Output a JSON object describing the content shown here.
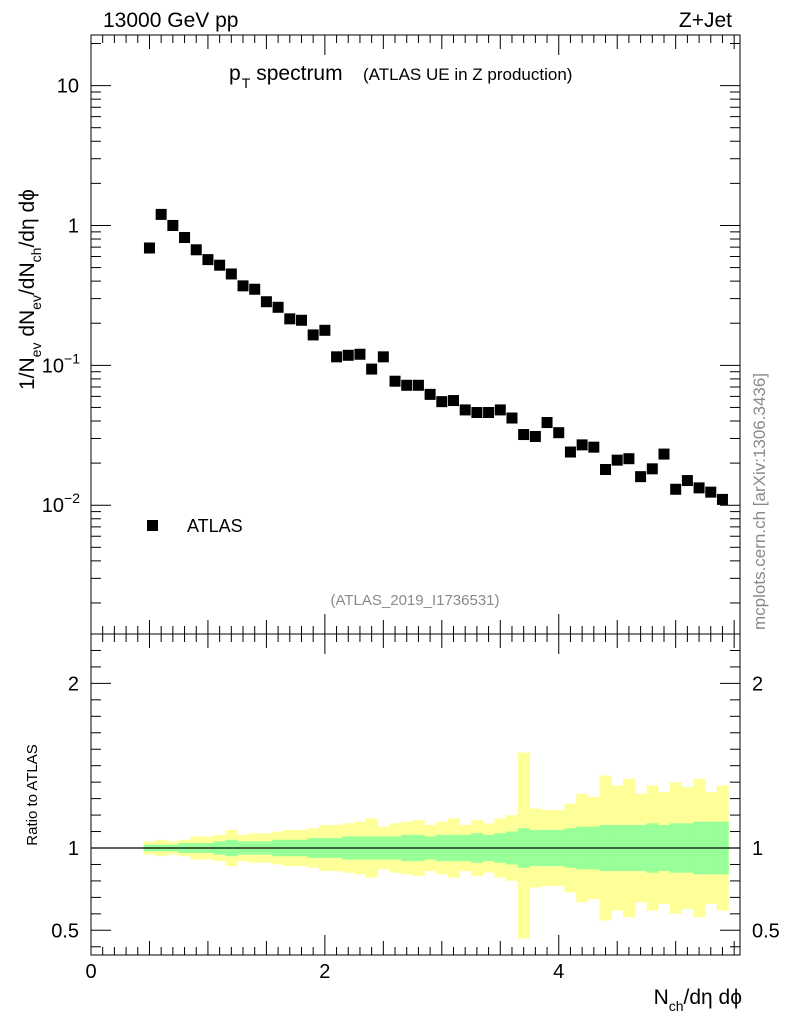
{
  "header": {
    "left_label": "13000 GeV pp",
    "right_label": "Z+Jet",
    "side_label": "mcplots.cern.ch [arXiv:1306.3436]",
    "analysis_id": "(ATLAS_2019_I1736531)"
  },
  "title": {
    "main": "p",
    "main_sub": "T",
    "main_rest": "spectrum",
    "detail": "(ATLAS UE in Z production)"
  },
  "chart_data": [
    {
      "type": "scatter",
      "log_y": true,
      "xlim": [
        0,
        5.55
      ],
      "ylim": [
        0.0012,
        23
      ],
      "ylabel": {
        "a": "1/N",
        "a_sub": "ev",
        "b": " dN",
        "b_sub": "ev",
        "c": "/dN",
        "c_sub": "ch",
        "d": "/dη dϕ"
      },
      "y_ticks": [
        {
          "value": 10,
          "label": "10"
        },
        {
          "value": 1,
          "label": "1"
        },
        {
          "value": 0.1,
          "label": "10",
          "exp": "−1"
        },
        {
          "value": 0.01,
          "label": "10",
          "exp": "−2"
        }
      ],
      "legend": {
        "position": "bottom-left",
        "entry": "ATLAS"
      },
      "series": [
        {
          "name": "ATLAS",
          "color": "#000000",
          "x": [
            0.5,
            0.6,
            0.7,
            0.8,
            0.9,
            1.0,
            1.1,
            1.2,
            1.3,
            1.4,
            1.5,
            1.6,
            1.7,
            1.8,
            1.9,
            2.0,
            2.1,
            2.2,
            2.3,
            2.4,
            2.5,
            2.6,
            2.7,
            2.8,
            2.9,
            3.0,
            3.1,
            3.2,
            3.3,
            3.4,
            3.5,
            3.6,
            3.7,
            3.8,
            3.9,
            4.0,
            4.1,
            4.2,
            4.3,
            4.4,
            4.5,
            4.6,
            4.7,
            4.8,
            4.9,
            5.0,
            5.1,
            5.2,
            5.3,
            5.4
          ],
          "values": [
            0.69,
            1.2,
            1.0,
            0.82,
            0.67,
            0.57,
            0.52,
            0.45,
            0.37,
            0.35,
            0.285,
            0.26,
            0.215,
            0.21,
            0.165,
            0.178,
            0.115,
            0.118,
            0.12,
            0.094,
            0.115,
            0.077,
            0.072,
            0.072,
            0.062,
            0.055,
            0.056,
            0.048,
            0.046,
            0.046,
            0.048,
            0.042,
            0.032,
            0.031,
            0.039,
            0.033,
            0.024,
            0.027,
            0.026,
            0.018,
            0.021,
            0.0215,
            0.016,
            0.0182,
            0.0232,
            0.013,
            0.015,
            0.0133,
            0.0124,
            0.011
          ]
        }
      ]
    },
    {
      "type": "area",
      "ylabel": "Ratio to ATLAS",
      "xlabel": {
        "a": "N",
        "a_sub": "ch",
        "b": "/dη dϕ"
      },
      "xlim": [
        0,
        5.55
      ],
      "ylim": [
        0.35,
        2.3
      ],
      "x_ticks": [
        {
          "value": 0,
          "label": "0"
        },
        {
          "value": 2,
          "label": "2"
        },
        {
          "value": 4,
          "label": "4"
        }
      ],
      "y_ticks": [
        {
          "value": 2,
          "label": "2"
        },
        {
          "value": 1,
          "label": "1"
        },
        {
          "value": 0.5,
          "label": "0.5"
        }
      ],
      "reference_line": 1,
      "bin_edges": [
        0.45,
        0.55,
        0.65,
        0.75,
        0.85,
        0.95,
        1.05,
        1.15,
        1.25,
        1.35,
        1.45,
        1.55,
        1.65,
        1.75,
        1.85,
        1.95,
        2.05,
        2.15,
        2.25,
        2.35,
        2.45,
        2.55,
        2.65,
        2.75,
        2.85,
        2.95,
        3.05,
        3.15,
        3.25,
        3.35,
        3.45,
        3.55,
        3.65,
        3.75,
        3.85,
        3.95,
        4.05,
        4.15,
        4.25,
        4.35,
        4.45,
        4.55,
        4.65,
        4.75,
        4.85,
        4.95,
        5.05,
        5.15,
        5.25,
        5.35,
        5.45
      ],
      "bands": [
        {
          "name": "total",
          "color": "#ffff99",
          "lower": [
            0.96,
            0.95,
            0.96,
            0.95,
            0.93,
            0.93,
            0.92,
            0.89,
            0.92,
            0.91,
            0.91,
            0.9,
            0.89,
            0.89,
            0.88,
            0.86,
            0.86,
            0.85,
            0.84,
            0.82,
            0.87,
            0.85,
            0.84,
            0.83,
            0.86,
            0.84,
            0.82,
            0.86,
            0.83,
            0.85,
            0.82,
            0.8,
            0.45,
            0.76,
            0.77,
            0.77,
            0.73,
            0.67,
            0.69,
            0.56,
            0.62,
            0.58,
            0.67,
            0.62,
            0.66,
            0.6,
            0.63,
            0.58,
            0.66,
            0.62
          ],
          "upper": [
            1.04,
            1.05,
            1.04,
            1.05,
            1.07,
            1.07,
            1.08,
            1.11,
            1.08,
            1.09,
            1.09,
            1.1,
            1.11,
            1.11,
            1.12,
            1.14,
            1.14,
            1.15,
            1.16,
            1.18,
            1.13,
            1.15,
            1.16,
            1.17,
            1.14,
            1.16,
            1.18,
            1.14,
            1.17,
            1.15,
            1.18,
            1.2,
            1.58,
            1.24,
            1.23,
            1.23,
            1.27,
            1.33,
            1.31,
            1.44,
            1.38,
            1.42,
            1.33,
            1.38,
            1.34,
            1.4,
            1.37,
            1.42,
            1.34,
            1.38
          ]
        },
        {
          "name": "statistical",
          "color": "#99ff99",
          "lower": [
            0.98,
            0.98,
            0.98,
            0.97,
            0.97,
            0.97,
            0.96,
            0.95,
            0.96,
            0.96,
            0.96,
            0.95,
            0.95,
            0.95,
            0.94,
            0.94,
            0.94,
            0.93,
            0.93,
            0.93,
            0.93,
            0.93,
            0.92,
            0.92,
            0.93,
            0.92,
            0.92,
            0.92,
            0.91,
            0.92,
            0.91,
            0.9,
            0.88,
            0.89,
            0.89,
            0.89,
            0.88,
            0.87,
            0.87,
            0.86,
            0.86,
            0.86,
            0.86,
            0.85,
            0.86,
            0.85,
            0.85,
            0.84,
            0.84,
            0.84
          ],
          "upper": [
            1.02,
            1.02,
            1.02,
            1.03,
            1.03,
            1.03,
            1.04,
            1.05,
            1.04,
            1.04,
            1.04,
            1.05,
            1.05,
            1.05,
            1.06,
            1.06,
            1.06,
            1.07,
            1.07,
            1.07,
            1.07,
            1.07,
            1.08,
            1.08,
            1.07,
            1.08,
            1.08,
            1.08,
            1.09,
            1.08,
            1.09,
            1.1,
            1.12,
            1.11,
            1.11,
            1.11,
            1.12,
            1.13,
            1.13,
            1.14,
            1.14,
            1.14,
            1.14,
            1.15,
            1.14,
            1.15,
            1.15,
            1.16,
            1.16,
            1.16
          ]
        }
      ]
    }
  ]
}
